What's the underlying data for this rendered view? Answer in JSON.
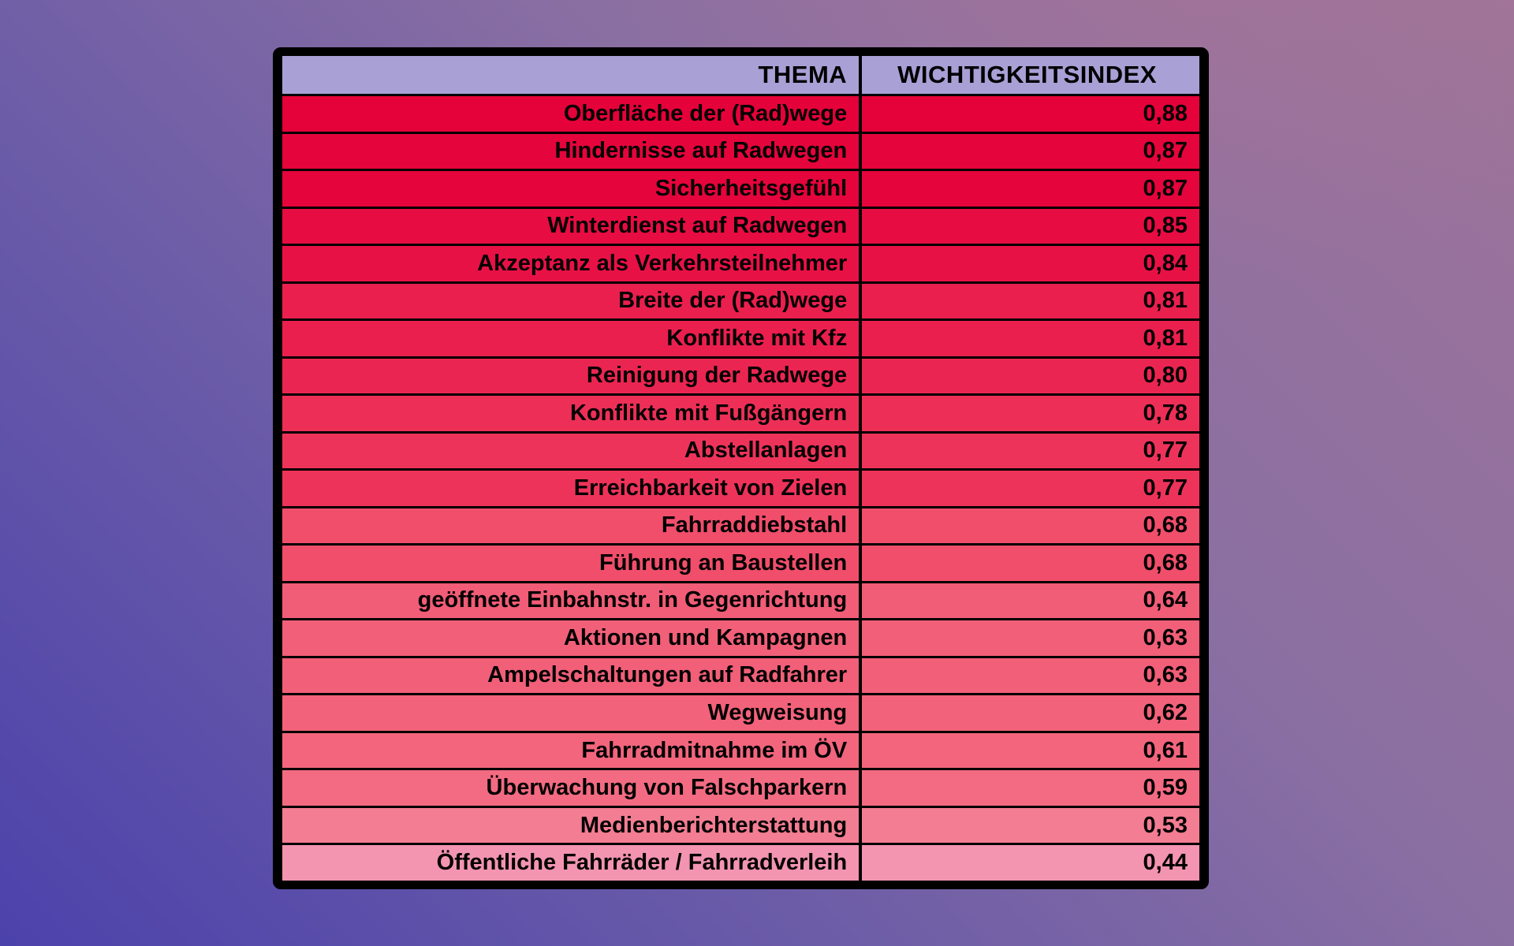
{
  "header_bg": "#A9A0D6",
  "text_color": "#000000",
  "border_color": "#000000",
  "background": {
    "top_left": "#80689F",
    "top_right": "#9C7399",
    "bottom_left": "#4C42AB",
    "bottom_right": "#675BA8"
  },
  "table": {
    "columns": [
      "THEMA",
      "WICHTIGKEITSINDEX"
    ],
    "rows": [
      {
        "thema": "Oberfläche der (Rad)wege",
        "value": "0,88",
        "color": "#E50139"
      },
      {
        "thema": "Hindernisse auf Radwegen",
        "value": "0,87",
        "color": "#E5043B"
      },
      {
        "thema": "Sicherheitsgefühl",
        "value": "0,87",
        "color": "#E5043B"
      },
      {
        "thema": "Winterdienst auf Radwegen",
        "value": "0,85",
        "color": "#E70C42"
      },
      {
        "thema": "Akzeptanz als Verkehrsteilnehmer",
        "value": "0,84",
        "color": "#E81146"
      },
      {
        "thema": "Breite der (Rad)wege",
        "value": "0,81",
        "color": "#EA1F4E"
      },
      {
        "thema": "Konflikte mit Kfz",
        "value": "0,81",
        "color": "#EA1F4E"
      },
      {
        "thema": "Reinigung der Radwege",
        "value": "0,80",
        "color": "#EB2551"
      },
      {
        "thema": "Konflikte mit Fußgängern",
        "value": "0,78",
        "color": "#ED2F57"
      },
      {
        "thema": "Abstellanlagen",
        "value": "0,77",
        "color": "#EE335A"
      },
      {
        "thema": "Erreichbarkeit von Zielen",
        "value": "0,77",
        "color": "#EE335A"
      },
      {
        "thema": "Fahrraddiebstahl",
        "value": "0,68",
        "color": "#F04E6B"
      },
      {
        "thema": "Führung an Baustellen",
        "value": "0,68",
        "color": "#F04E6B"
      },
      {
        "thema": "geöffnete Einbahnstr. in Gegenrichtung",
        "value": "0,64",
        "color": "#F15C76"
      },
      {
        "thema": "Aktionen und Kampagnen",
        "value": "0,63",
        "color": "#F15F78"
      },
      {
        "thema": "Ampelschaltungen auf Radfahrer",
        "value": "0,63",
        "color": "#F15F78"
      },
      {
        "thema": "Wegweisung",
        "value": "0,62",
        "color": "#F2627A"
      },
      {
        "thema": "Fahrradmitnahme im ÖV",
        "value": "0,61",
        "color": "#F2657D"
      },
      {
        "thema": "Überwachung von Falschparkern",
        "value": "0,59",
        "color": "#F36B82"
      },
      {
        "thema": "Medienberichterstattung",
        "value": "0,53",
        "color": "#F37D92"
      },
      {
        "thema": "Öffentliche Fahrräder / Fahrradverleih",
        "value": "0,44",
        "color": "#F394B0"
      }
    ]
  },
  "chart_data": {
    "type": "table",
    "title": "",
    "columns": [
      "THEMA",
      "WICHTIGKEITSINDEX"
    ],
    "categories": [
      "Oberfläche der (Rad)wege",
      "Hindernisse auf Radwegen",
      "Sicherheitsgefühl",
      "Winterdienst auf Radwegen",
      "Akzeptanz als Verkehrsteilnehmer",
      "Breite der (Rad)wege",
      "Konflikte mit Kfz",
      "Reinigung der Radwege",
      "Konflikte mit Fußgängern",
      "Abstellanlagen",
      "Erreichbarkeit von Zielen",
      "Fahrraddiebstahl",
      "Führung an Baustellen",
      "geöffnete Einbahnstr. in Gegenrichtung",
      "Aktionen und Kampagnen",
      "Ampelschaltungen auf Radfahrer",
      "Wegweisung",
      "Fahrradmitnahme im ÖV",
      "Überwachung von Falschparkern",
      "Medienberichterstattung",
      "Öffentliche Fahrräder / Fahrradverleih"
    ],
    "values": [
      0.88,
      0.87,
      0.87,
      0.85,
      0.84,
      0.81,
      0.81,
      0.8,
      0.78,
      0.77,
      0.77,
      0.68,
      0.68,
      0.64,
      0.63,
      0.63,
      0.62,
      0.61,
      0.59,
      0.53,
      0.44
    ],
    "value_format": "decimal-comma",
    "color_scale": {
      "high": "#E50139",
      "low": "#F394B0"
    }
  }
}
